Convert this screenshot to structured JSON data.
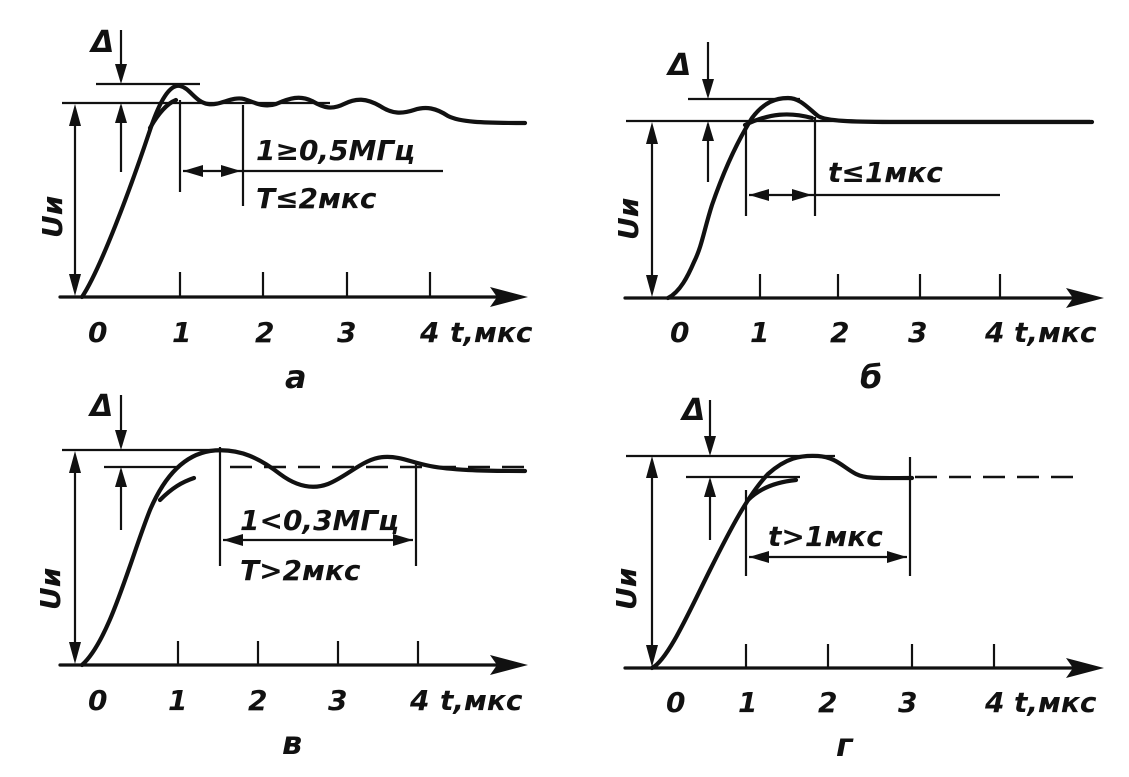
{
  "panels": [
    {
      "id": "a",
      "caption": "а",
      "amplitude_label": "Uи",
      "delta_label": "Δ",
      "x_ticks": [
        "0",
        "1",
        "2",
        "3",
        "4"
      ],
      "x_unit": "t,мкс",
      "annotations": [
        "1≥0,5МГц",
        "T≤2мкс"
      ]
    },
    {
      "id": "b",
      "caption": "б",
      "amplitude_label": "Uи",
      "delta_label": "Δ",
      "x_ticks": [
        "0",
        "1",
        "2",
        "3",
        "4"
      ],
      "x_unit": "t,мкс",
      "annotations": [
        "t≤1мкс"
      ]
    },
    {
      "id": "v",
      "caption": "в",
      "amplitude_label": "Uи",
      "delta_label": "Δ",
      "x_ticks": [
        "0",
        "1",
        "2",
        "3",
        "4"
      ],
      "x_unit": "t,мкс",
      "annotations": [
        "1<0,3МГц",
        "T>2мкс"
      ]
    },
    {
      "id": "g",
      "caption": "г",
      "amplitude_label": "Uи",
      "delta_label": "Δ",
      "x_ticks": [
        "0",
        "1",
        "2",
        "3",
        "4"
      ],
      "x_unit": "t,мкс",
      "annotations": [
        "t>1мкс"
      ]
    }
  ]
}
